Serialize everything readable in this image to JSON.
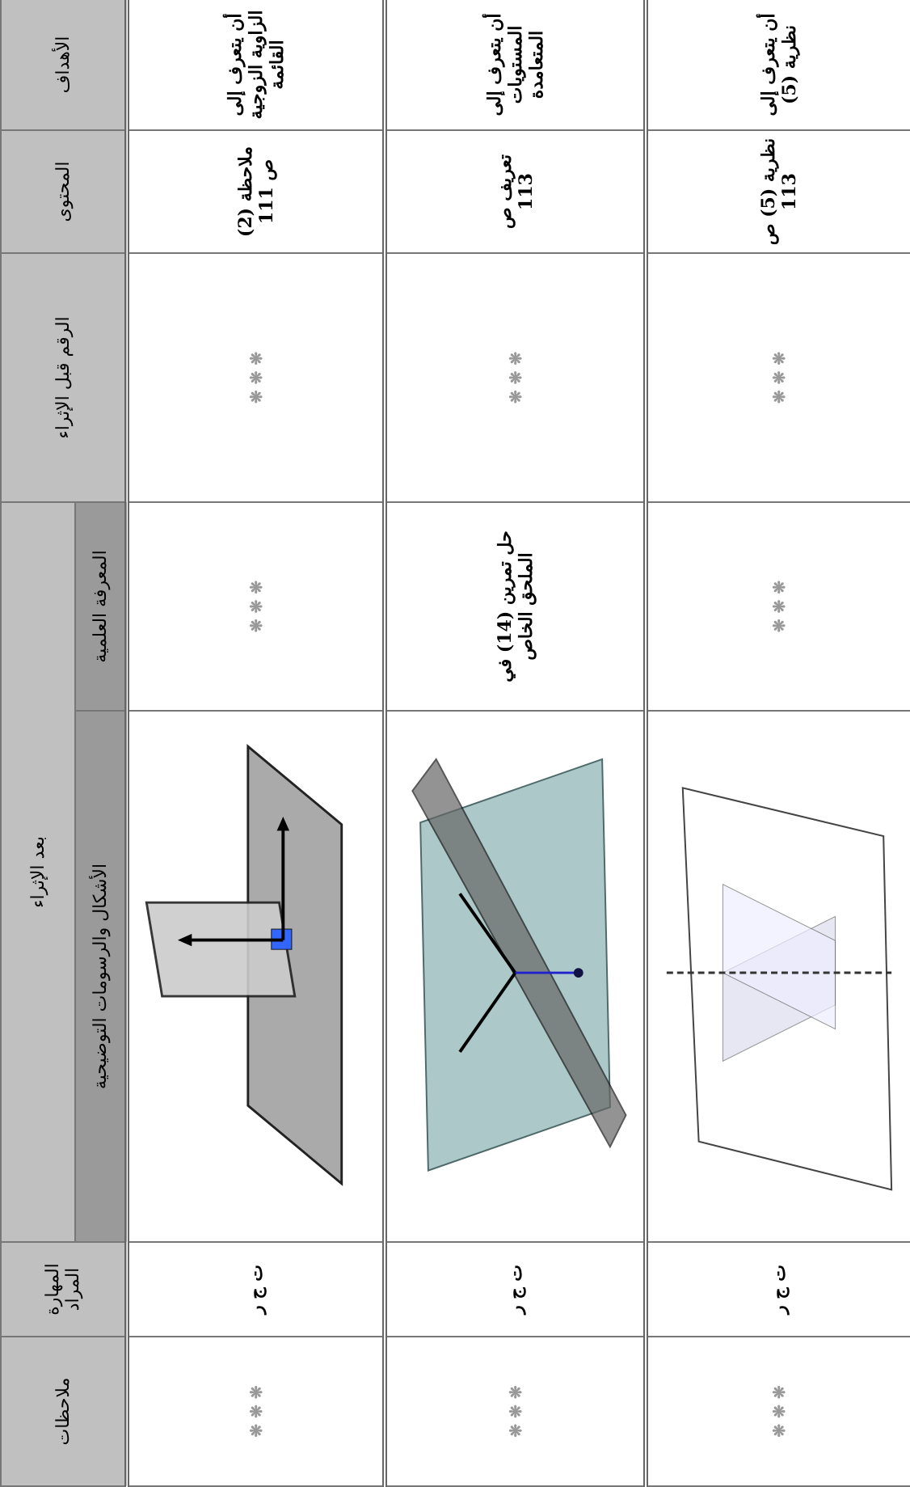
{
  "header": {
    "objectives": "الأهداف",
    "content": "المحتوى",
    "number_before": "الرقم قبل الإثراء",
    "after_enrichment": "بعد الإثراء",
    "knowledge": "المعرفة العلمية",
    "figures": "الأشكال والرسومات التوضيحية",
    "skill": "المهارة المراد",
    "notes": "ملاحظات"
  },
  "rows": [
    {
      "objective": "أن يتعرف إلى الزاوية الزوجية القائمة",
      "content": "ملاحظة (2) ص 111",
      "number_before": "❋ ❋ ❋",
      "knowledge": "❋ ❋ ❋",
      "skill": "ت ج ر",
      "notes": "❋ ❋ ❋"
    },
    {
      "objective": "أن يتعرف إلى المستويات المتعامدة",
      "content": "تعريف ص 113",
      "number_before": "❋ ❋ ❋",
      "knowledge": "حل تمرين (14) في الملحق الخاص",
      "skill": "ت ج ر",
      "notes": "❋ ❋ ❋"
    },
    {
      "objective": "أن يتعرف إلى نظرية (5)",
      "content": "نظرية (5) ص 113",
      "number_before": "❋ ❋ ❋",
      "knowledge": "❋ ❋ ❋",
      "skill": "ت ج ر",
      "notes": "❋ ❋ ❋"
    }
  ]
}
